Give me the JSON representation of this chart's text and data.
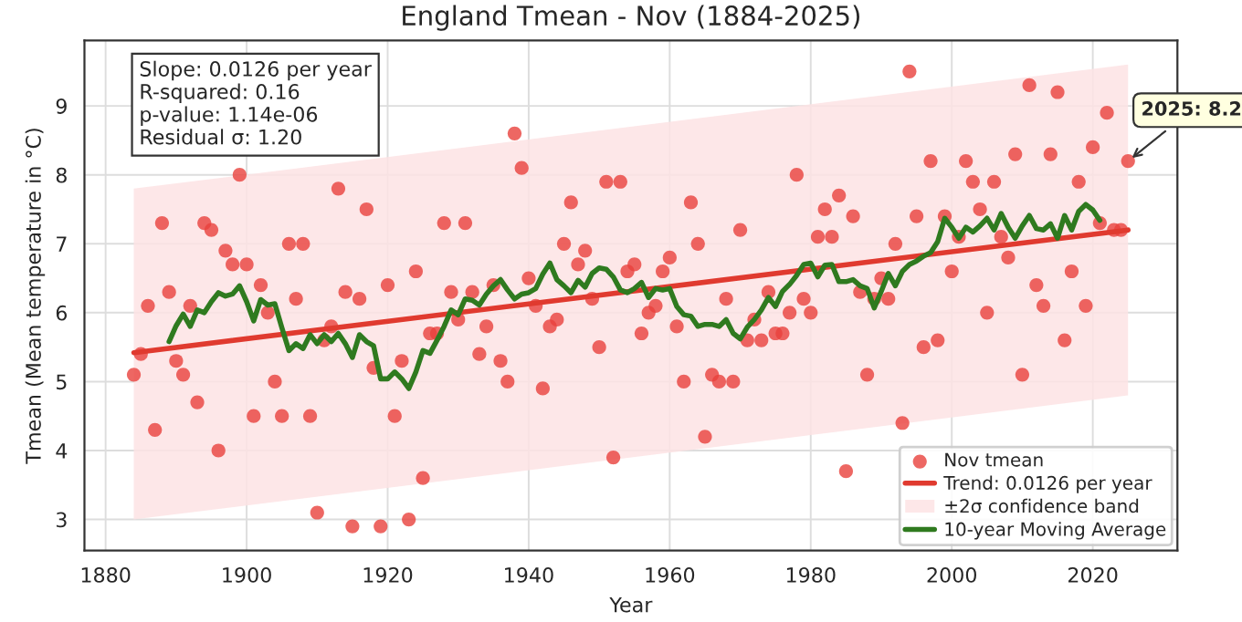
{
  "chart_data": {
    "type": "scatter",
    "title": "England Tmean - Nov (1884-2025)",
    "xlabel": "Year",
    "ylabel": "Tmean (Mean temperature in °C)",
    "xlim": [
      1877,
      2032
    ],
    "ylim": [
      2.55,
      9.95
    ],
    "xticks": [
      1880,
      1900,
      1920,
      1940,
      1960,
      1980,
      2000,
      2020
    ],
    "yticks": [
      3,
      4,
      5,
      6,
      7,
      8,
      9
    ],
    "grid": true,
    "legend": "bottom right",
    "annotations": [
      "Slope: 0.0126 per year\nR-squared: 0.16\np-value: 1.14e-06\nResidual σ: 1.20",
      {
        "text": "2025: 8.2",
        "x": 2025,
        "y": 8.2
      }
    ],
    "series": [
      {
        "name": "Nov tmean",
        "color": "#e8413c",
        "marker": "circle",
        "x": [
          1884,
          1885,
          1886,
          1887,
          1888,
          1889,
          1890,
          1891,
          1892,
          1893,
          1894,
          1895,
          1896,
          1897,
          1898,
          1899,
          1900,
          1901,
          1902,
          1903,
          1904,
          1905,
          1906,
          1907,
          1908,
          1909,
          1910,
          1911,
          1912,
          1913,
          1914,
          1915,
          1916,
          1917,
          1918,
          1919,
          1920,
          1921,
          1922,
          1923,
          1924,
          1925,
          1926,
          1927,
          1928,
          1929,
          1930,
          1931,
          1932,
          1933,
          1934,
          1935,
          1936,
          1937,
          1938,
          1939,
          1940,
          1941,
          1942,
          1943,
          1944,
          1945,
          1946,
          1947,
          1948,
          1949,
          1950,
          1951,
          1952,
          1953,
          1954,
          1955,
          1956,
          1957,
          1958,
          1959,
          1960,
          1961,
          1962,
          1963,
          1964,
          1965,
          1966,
          1967,
          1968,
          1969,
          1970,
          1971,
          1972,
          1973,
          1974,
          1975,
          1976,
          1977,
          1978,
          1979,
          1980,
          1981,
          1982,
          1983,
          1984,
          1985,
          1986,
          1987,
          1988,
          1989,
          1990,
          1991,
          1992,
          1993,
          1994,
          1995,
          1996,
          1997,
          1998,
          1999,
          2000,
          2001,
          2002,
          2003,
          2004,
          2005,
          2006,
          2007,
          2008,
          2009,
          2010,
          2011,
          2012,
          2013,
          2014,
          2015,
          2016,
          2017,
          2018,
          2019,
          2020,
          2021,
          2022,
          2023,
          2024,
          2025
        ],
        "values": [
          5.1,
          5.4,
          6.1,
          4.3,
          7.3,
          6.3,
          5.3,
          5.1,
          6.1,
          4.7,
          7.3,
          7.2,
          4.0,
          6.9,
          6.7,
          8.0,
          6.7,
          4.5,
          6.4,
          6.0,
          5.0,
          4.5,
          7.0,
          6.2,
          7.0,
          4.5,
          3.1,
          5.6,
          5.8,
          7.8,
          6.3,
          2.9,
          6.2,
          7.5,
          5.2,
          2.9,
          6.4,
          4.5,
          5.3,
          3.0,
          6.6,
          3.6,
          5.7,
          5.7,
          7.3,
          6.3,
          5.9,
          7.3,
          6.3,
          5.4,
          5.8,
          6.4,
          5.3,
          5.0,
          8.6,
          8.1,
          6.5,
          6.1,
          4.9,
          5.8,
          5.9,
          7.0,
          7.6,
          6.7,
          6.9,
          6.2,
          5.5,
          7.9,
          3.9,
          7.9,
          6.6,
          6.7,
          5.7,
          6.0,
          6.1,
          6.6,
          6.8,
          5.8,
          5.0,
          7.6,
          7.0,
          4.2,
          5.1,
          5.0,
          6.2,
          5.0,
          7.2,
          5.6,
          5.9,
          5.6,
          6.3,
          5.7,
          5.7,
          6.0,
          8.0,
          6.2,
          6.0,
          7.1,
          7.5,
          7.1,
          7.7,
          3.7,
          7.4,
          6.3,
          5.1,
          6.2,
          6.5,
          6.2,
          7.0,
          4.4,
          9.5,
          7.4,
          5.5,
          8.2,
          5.6,
          7.4,
          6.6,
          7.1,
          8.2,
          7.9,
          7.5,
          6.0,
          7.9,
          7.1,
          6.8,
          8.3,
          5.1,
          9.3,
          6.4,
          6.1,
          8.3,
          9.2,
          5.6,
          6.6,
          7.9,
          6.1,
          8.4,
          7.3,
          8.9,
          7.2,
          7.2,
          8.2
        ]
      },
      {
        "name": "Trend: 0.0126 per year",
        "type": "line",
        "color": "#e03a2f",
        "line_style": "solid",
        "x": [
          1884,
          2025
        ],
        "values": [
          5.42,
          7.2
        ],
        "lower": [
          3.0,
          4.8
        ],
        "upper": [
          7.8,
          9.6
        ]
      },
      {
        "name": "±2σ confidence band",
        "type": "area",
        "color": "#fde3e4"
      },
      {
        "name": "10-year Moving Average",
        "type": "line",
        "color": "#2f7a1f",
        "line_style": "solid",
        "x": [
          1889,
          1890,
          1891,
          1892,
          1893,
          1894,
          1895,
          1896,
          1897,
          1898,
          1899,
          1900,
          1901,
          1902,
          1903,
          1904,
          1905,
          1906,
          1907,
          1908,
          1909,
          1910,
          1911,
          1912,
          1913,
          1914,
          1915,
          1916,
          1917,
          1918,
          1919,
          1920,
          1921,
          1922,
          1923,
          1924,
          1925,
          1926,
          1927,
          1928,
          1929,
          1930,
          1931,
          1932,
          1933,
          1934,
          1935,
          1936,
          1937,
          1938,
          1939,
          1940,
          1941,
          1942,
          1943,
          1944,
          1945,
          1946,
          1947,
          1948,
          1949,
          1950,
          1951,
          1952,
          1953,
          1954,
          1955,
          1956,
          1957,
          1958,
          1959,
          1960,
          1961,
          1962,
          1963,
          1964,
          1965,
          1966,
          1967,
          1968,
          1969,
          1970,
          1971,
          1972,
          1973,
          1974,
          1975,
          1976,
          1977,
          1978,
          1979,
          1980,
          1981,
          1982,
          1983,
          1984,
          1985,
          1986,
          1987,
          1988,
          1989,
          1990,
          1991,
          1992,
          1993,
          1994,
          1995,
          1996,
          1997,
          1998,
          1999,
          2000,
          2001,
          2002,
          2003,
          2004,
          2005,
          2006,
          2007,
          2008,
          2009,
          2010,
          2011,
          2012,
          2013,
          2014,
          2015,
          2016,
          2017,
          2018,
          2019,
          2020,
          2021
        ],
        "values": [
          5.58,
          5.81,
          5.98,
          5.8,
          6.04,
          6.0,
          6.16,
          6.29,
          6.24,
          6.27,
          6.39,
          6.16,
          5.88,
          6.19,
          6.11,
          6.13,
          5.78,
          5.45,
          5.55,
          5.48,
          5.68,
          5.55,
          5.68,
          5.58,
          5.7,
          5.55,
          5.35,
          5.68,
          5.58,
          5.52,
          5.04,
          5.04,
          5.14,
          5.04,
          4.9,
          5.14,
          5.45,
          5.41,
          5.6,
          5.8,
          6.04,
          5.97,
          6.2,
          6.18,
          6.11,
          6.27,
          6.39,
          6.48,
          6.33,
          6.2,
          6.27,
          6.29,
          6.35,
          6.56,
          6.72,
          6.48,
          6.39,
          6.29,
          6.47,
          6.37,
          6.57,
          6.65,
          6.63,
          6.52,
          6.33,
          6.29,
          6.35,
          6.44,
          6.22,
          6.35,
          6.33,
          6.35,
          6.09,
          5.97,
          5.95,
          5.8,
          5.83,
          5.83,
          5.8,
          5.9,
          5.7,
          5.62,
          5.79,
          5.9,
          6.04,
          6.22,
          6.09,
          6.31,
          6.41,
          6.54,
          6.7,
          6.72,
          6.52,
          6.69,
          6.7,
          6.45,
          6.45,
          6.48,
          6.39,
          6.35,
          6.07,
          6.31,
          6.57,
          6.39,
          6.6,
          6.7,
          6.75,
          6.82,
          6.87,
          7.03,
          7.37,
          7.24,
          7.08,
          7.24,
          7.17,
          7.26,
          7.37,
          7.2,
          7.44,
          7.24,
          7.08,
          7.26,
          7.41,
          7.22,
          7.2,
          7.29,
          7.08,
          7.41,
          7.2,
          7.47,
          7.57,
          7.49,
          7.34
        ]
      }
    ]
  }
}
